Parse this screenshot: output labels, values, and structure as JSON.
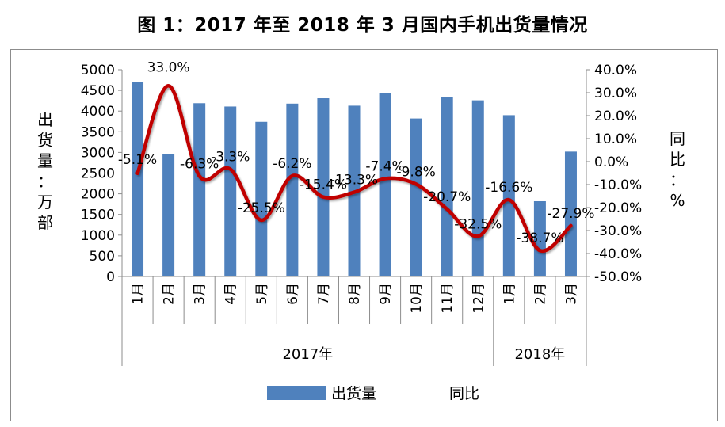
{
  "title": "图 1：2017 年至 2018 年 3 月国内手机出货量情况",
  "colors": {
    "bar": "#4f81bd",
    "line": "#c00000",
    "axis": "#8c8c8c"
  },
  "chart_data": {
    "type": "bar+line",
    "title": "图 1：2017 年至 2018 年 3 月国内手机出货量情况",
    "categories": [
      "1月",
      "2月",
      "3月",
      "4月",
      "5月",
      "6月",
      "7月",
      "8月",
      "9月",
      "10月",
      "11月",
      "12月",
      "1月",
      "2月",
      "3月"
    ],
    "groups": [
      {
        "label": "2017年",
        "count": 12
      },
      {
        "label": "2018年",
        "count": 3
      }
    ],
    "ylabel_left": "出货量：万部",
    "ylabel_right": "同比：%",
    "ylim_left": [
      0,
      5000
    ],
    "ylim_right": [
      -50,
      40
    ],
    "yticks_left": [
      "0",
      "500",
      "1000",
      "1500",
      "2000",
      "2500",
      "3000",
      "3500",
      "4000",
      "4500",
      "5000"
    ],
    "yticks_right": [
      "-50.0%",
      "-40.0%",
      "-30.0%",
      "-20.0%",
      "-10.0%",
      "0.0%",
      "10.0%",
      "20.0%",
      "30.0%",
      "40.0%"
    ],
    "series": [
      {
        "name": "出货量",
        "type": "bar",
        "axis": "left",
        "values": [
          4700,
          2960,
          4190,
          4110,
          3740,
          4180,
          4310,
          4130,
          4430,
          3820,
          4340,
          4260,
          3900,
          1820,
          3020
        ]
      },
      {
        "name": "同比",
        "type": "line",
        "axis": "right",
        "values": [
          -5.1,
          33.0,
          -6.3,
          -3.3,
          -25.5,
          -6.2,
          -15.4,
          -13.3,
          -7.4,
          -9.8,
          -20.7,
          -32.5,
          -16.6,
          -38.7,
          -27.9
        ],
        "labels": [
          "-5.1%",
          "33.0%",
          "-6.3%",
          "-3.3%",
          "-25.5%",
          "-6.2%",
          "-15.4%",
          "-13.3%",
          "-7.4%",
          "-9.8%",
          "-20.7%",
          "-32.5%",
          "-16.6%",
          "-38.7%",
          "-27.9%"
        ]
      }
    ],
    "legend": {
      "position": "bottom",
      "items": [
        "出货量",
        "同比"
      ]
    },
    "grid": false
  }
}
